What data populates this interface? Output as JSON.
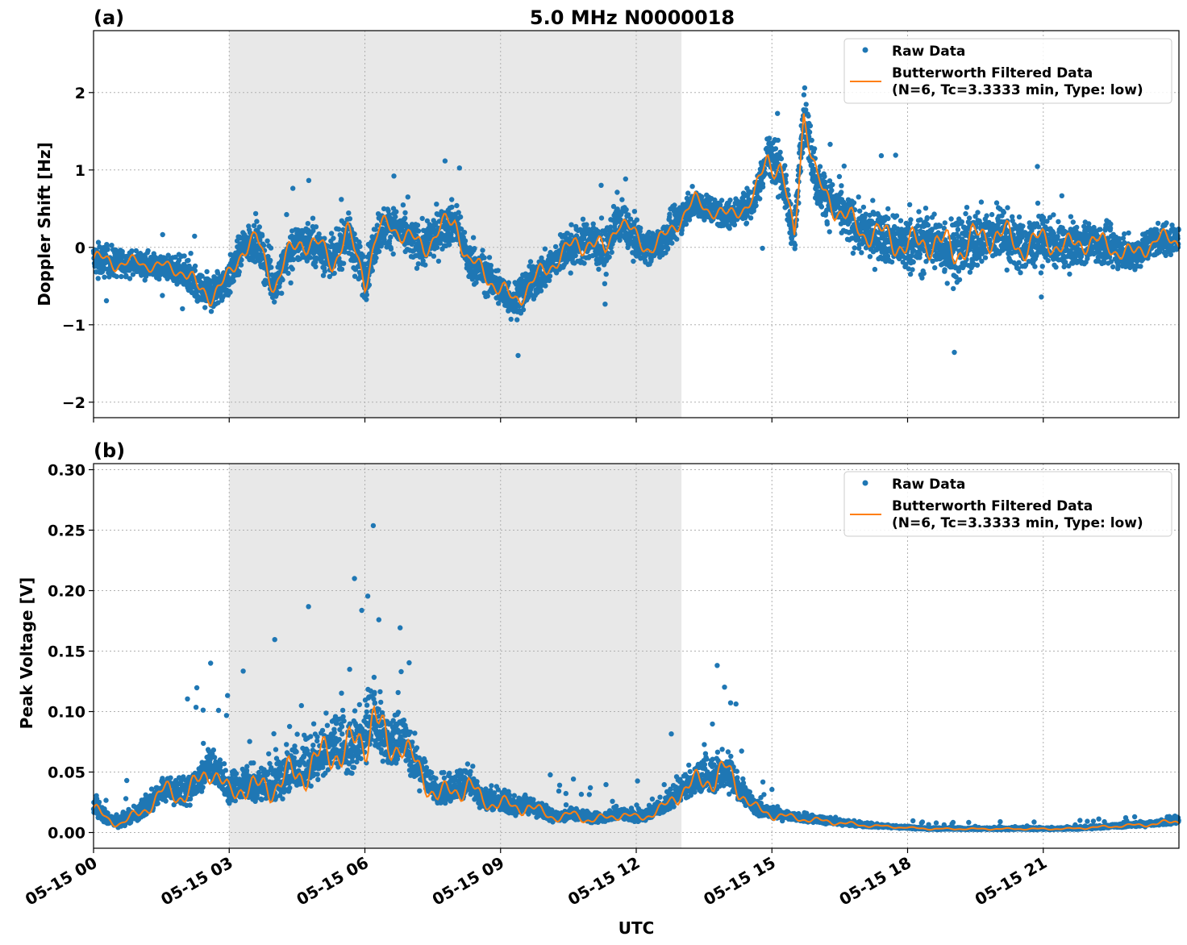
{
  "figure": {
    "title": "5.0 MHz N0000018",
    "xlabel": "UTC",
    "x_ticks": [
      "05-15 00",
      "05-15 03",
      "05-15 06",
      "05-15 09",
      "05-15 12",
      "05-15 15",
      "05-15 18",
      "05-15 21"
    ],
    "shaded_interval_utc_hours": [
      3.0,
      13.0
    ]
  },
  "colors": {
    "raw": "#1f77b4",
    "filtered": "#ff7f0e",
    "shade": "#e8e8e8",
    "grid": "#b0b0b0"
  },
  "legend": {
    "raw_label": "Raw Data",
    "filtered_label_line1": "Butterworth Filtered Data",
    "filtered_label_line2": "(N=6, Tc=3.3333 min, Type: low)",
    "placement": "top-right"
  },
  "chart_data": [
    {
      "type": "scatter+line",
      "panel_label": "(a)",
      "ylabel": "Doppler Shift [Hz]",
      "xlim_hours": [
        0,
        24
      ],
      "ylim": [
        -2.2,
        2.8
      ],
      "y_ticks": [
        "2",
        "1",
        "0",
        "−1",
        "−2"
      ],
      "y_tick_values": [
        2,
        1,
        0,
        -1,
        -2
      ],
      "x_hours": [
        0,
        0.5,
        1,
        1.5,
        2,
        2.3,
        2.6,
        3,
        3.3,
        3.6,
        4,
        4.3,
        4.6,
        5,
        5.3,
        5.6,
        6,
        6.3,
        6.6,
        7,
        7.3,
        7.6,
        8,
        8.3,
        8.6,
        9,
        9.3,
        9.6,
        10,
        10.3,
        10.6,
        11,
        11.3,
        11.6,
        12,
        12.3,
        12.6,
        13,
        13.3,
        13.6,
        14,
        14.3,
        14.6,
        14.9,
        15.2,
        15.5,
        15.7,
        16,
        16.3,
        16.6,
        17,
        17.5,
        18,
        18.5,
        19,
        19.5,
        20,
        20.5,
        21,
        21.5,
        22,
        22.5,
        23,
        23.5,
        24
      ],
      "filtered": [
        -0.15,
        -0.2,
        -0.2,
        -0.25,
        -0.3,
        -0.55,
        -0.6,
        -0.4,
        0.0,
        0.1,
        -0.5,
        -0.1,
        0.1,
        0.0,
        -0.2,
        0.2,
        -0.4,
        0.2,
        0.3,
        0.1,
        0.0,
        0.2,
        0.35,
        -0.2,
        -0.3,
        -0.55,
        -0.7,
        -0.5,
        -0.3,
        -0.1,
        0.0,
        0.1,
        -0.1,
        0.4,
        0.1,
        0.0,
        0.1,
        0.4,
        0.6,
        0.5,
        0.4,
        0.5,
        0.6,
        1.2,
        1.0,
        0.1,
        1.8,
        0.8,
        0.6,
        0.4,
        0.2,
        0.15,
        0.0,
        0.1,
        -0.05,
        0.1,
        0.2,
        0.0,
        0.1,
        0.0,
        0.1,
        0.0,
        -0.1,
        0.1,
        0.1
      ],
      "spread": [
        0.35,
        0.3,
        0.25,
        0.25,
        0.3,
        0.45,
        0.4,
        0.4,
        0.4,
        0.4,
        0.45,
        0.4,
        0.45,
        0.45,
        0.45,
        0.45,
        0.5,
        0.45,
        0.45,
        0.4,
        0.45,
        0.45,
        0.45,
        0.4,
        0.4,
        0.4,
        0.4,
        0.4,
        0.4,
        0.4,
        0.45,
        0.45,
        0.45,
        0.45,
        0.4,
        0.35,
        0.35,
        0.35,
        0.3,
        0.3,
        0.3,
        0.3,
        0.35,
        0.6,
        0.5,
        0.4,
        0.6,
        0.5,
        0.5,
        0.5,
        0.5,
        0.55,
        0.6,
        0.65,
        0.7,
        0.65,
        0.6,
        0.55,
        0.5,
        0.45,
        0.45,
        0.4,
        0.35,
        0.35,
        0.35
      ]
    },
    {
      "type": "scatter+line",
      "panel_label": "(b)",
      "ylabel": "Peak Voltage [V]",
      "xlim_hours": [
        0,
        24
      ],
      "ylim": [
        -0.013,
        0.305
      ],
      "y_ticks": [
        "0.30",
        "0.25",
        "0.20",
        "0.15",
        "0.10",
        "0.05",
        "0.00"
      ],
      "y_tick_values": [
        0.3,
        0.25,
        0.2,
        0.15,
        0.1,
        0.05,
        0.0
      ],
      "x_hours": [
        0,
        0.3,
        0.6,
        1,
        1.3,
        1.6,
        2,
        2.3,
        2.6,
        3,
        3.3,
        3.6,
        4,
        4.3,
        4.6,
        5,
        5.3,
        5.6,
        6,
        6.2,
        6.5,
        6.8,
        7,
        7.3,
        7.6,
        8,
        8.3,
        8.6,
        9,
        9.3,
        9.6,
        10,
        10.3,
        10.6,
        11,
        11.3,
        11.6,
        12,
        12.3,
        12.6,
        13,
        13.3,
        13.6,
        14,
        14.3,
        14.6,
        15,
        15.5,
        16,
        16.5,
        17,
        17.5,
        18,
        18.5,
        19,
        19.5,
        20,
        20.5,
        21,
        21.5,
        22,
        22.5,
        23,
        23.5,
        24
      ],
      "filtered": [
        0.02,
        0.01,
        0.008,
        0.015,
        0.025,
        0.035,
        0.03,
        0.04,
        0.055,
        0.03,
        0.04,
        0.035,
        0.04,
        0.045,
        0.05,
        0.06,
        0.07,
        0.065,
        0.08,
        0.1,
        0.065,
        0.08,
        0.06,
        0.045,
        0.03,
        0.035,
        0.04,
        0.025,
        0.025,
        0.02,
        0.022,
        0.015,
        0.012,
        0.015,
        0.01,
        0.012,
        0.015,
        0.012,
        0.015,
        0.02,
        0.035,
        0.04,
        0.045,
        0.05,
        0.035,
        0.02,
        0.015,
        0.012,
        0.01,
        0.008,
        0.006,
        0.005,
        0.004,
        0.003,
        0.003,
        0.003,
        0.003,
        0.003,
        0.003,
        0.003,
        0.004,
        0.005,
        0.006,
        0.007,
        0.01
      ],
      "spread": [
        0.02,
        0.012,
        0.01,
        0.015,
        0.02,
        0.025,
        0.025,
        0.03,
        0.035,
        0.03,
        0.035,
        0.035,
        0.04,
        0.045,
        0.045,
        0.05,
        0.055,
        0.055,
        0.06,
        0.07,
        0.05,
        0.05,
        0.045,
        0.035,
        0.025,
        0.03,
        0.03,
        0.022,
        0.02,
        0.018,
        0.018,
        0.012,
        0.01,
        0.012,
        0.01,
        0.01,
        0.012,
        0.01,
        0.012,
        0.015,
        0.025,
        0.03,
        0.035,
        0.04,
        0.025,
        0.015,
        0.012,
        0.008,
        0.007,
        0.006,
        0.004,
        0.003,
        0.002,
        0.002,
        0.002,
        0.002,
        0.002,
        0.002,
        0.002,
        0.002,
        0.003,
        0.003,
        0.004,
        0.005,
        0.008
      ]
    }
  ]
}
